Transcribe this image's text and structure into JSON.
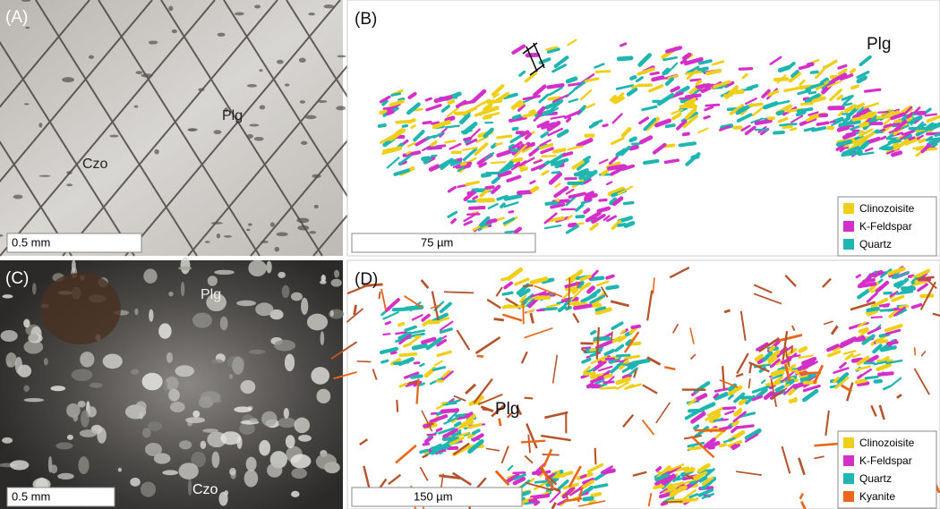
{
  "panels": [
    {
      "label": "(A)",
      "annotations": [
        "Czo",
        "Plg"
      ],
      "scale_bar": "0.5 mm"
    },
    {
      "label": "(B)",
      "annotations": [
        "Plg"
      ],
      "scale_bar": "75 µm",
      "legend": [
        {
          "name": "Clinozoisite",
          "color": "#f0cf1a"
        },
        {
          "name": "K-Feldspar",
          "color": "#d42fc9"
        },
        {
          "name": "Quartz",
          "color": "#1fb5b0"
        }
      ]
    },
    {
      "label": "(C)",
      "annotations": [
        "Plg",
        "Czo"
      ],
      "scale_bar": "0.5 mm"
    },
    {
      "label": "(D)",
      "annotations": [
        "Plg"
      ],
      "scale_bar": "150 µm",
      "legend": [
        {
          "name": "Clinozoisite",
          "color": "#f0cf1a"
        },
        {
          "name": "K-Feldspar",
          "color": "#d42fc9"
        },
        {
          "name": "Quartz",
          "color": "#1fb5b0"
        },
        {
          "name": "Kyanite",
          "color": "#e8671a"
        }
      ]
    }
  ]
}
